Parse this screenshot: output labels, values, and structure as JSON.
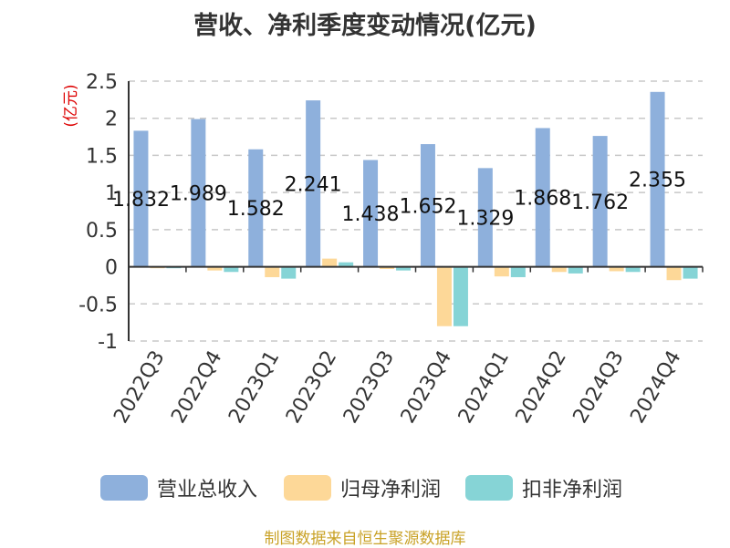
{
  "chart_data": {
    "type": "bar",
    "title": "营收、净利季度变动情况(亿元)",
    "unit_label": "(亿元)",
    "categories": [
      "2022Q3",
      "2022Q4",
      "2023Q1",
      "2023Q2",
      "2023Q3",
      "2023Q4",
      "2024Q1",
      "2024Q2",
      "2024Q3",
      "2024Q4"
    ],
    "series": [
      {
        "name": "营业总收入",
        "color": "#8eb0dc",
        "values": [
          1.832,
          1.989,
          1.582,
          2.241,
          1.438,
          1.652,
          1.329,
          1.868,
          1.762,
          2.355
        ]
      },
      {
        "name": "归母净利润",
        "color": "#fdd898",
        "values": [
          -0.02,
          -0.05,
          -0.14,
          0.11,
          -0.03,
          -0.8,
          -0.13,
          -0.07,
          -0.06,
          -0.18
        ]
      },
      {
        "name": "扣非净利润",
        "color": "#86d4d6",
        "values": [
          -0.02,
          -0.07,
          -0.16,
          0.06,
          -0.05,
          -0.8,
          -0.14,
          -0.09,
          -0.07,
          -0.16
        ]
      }
    ],
    "data_labels": [
      "1.832",
      "1.989",
      "1.582",
      "2.241",
      "1.438",
      "1.652",
      "1.329",
      "1.868",
      "1.762",
      "2.355"
    ],
    "ylim": [
      -1,
      2.5
    ],
    "yticks": [
      -1,
      -0.5,
      0,
      0.5,
      1,
      1.5,
      2,
      2.5
    ],
    "ytick_labels": [
      "-1",
      "-0.5",
      "0",
      "0.5",
      "1",
      "1.5",
      "2",
      "2.5"
    ],
    "grid": "horizontal-dashed",
    "legend_position": "bottom"
  },
  "source_text": "制图数据来自恒生聚源数据库"
}
